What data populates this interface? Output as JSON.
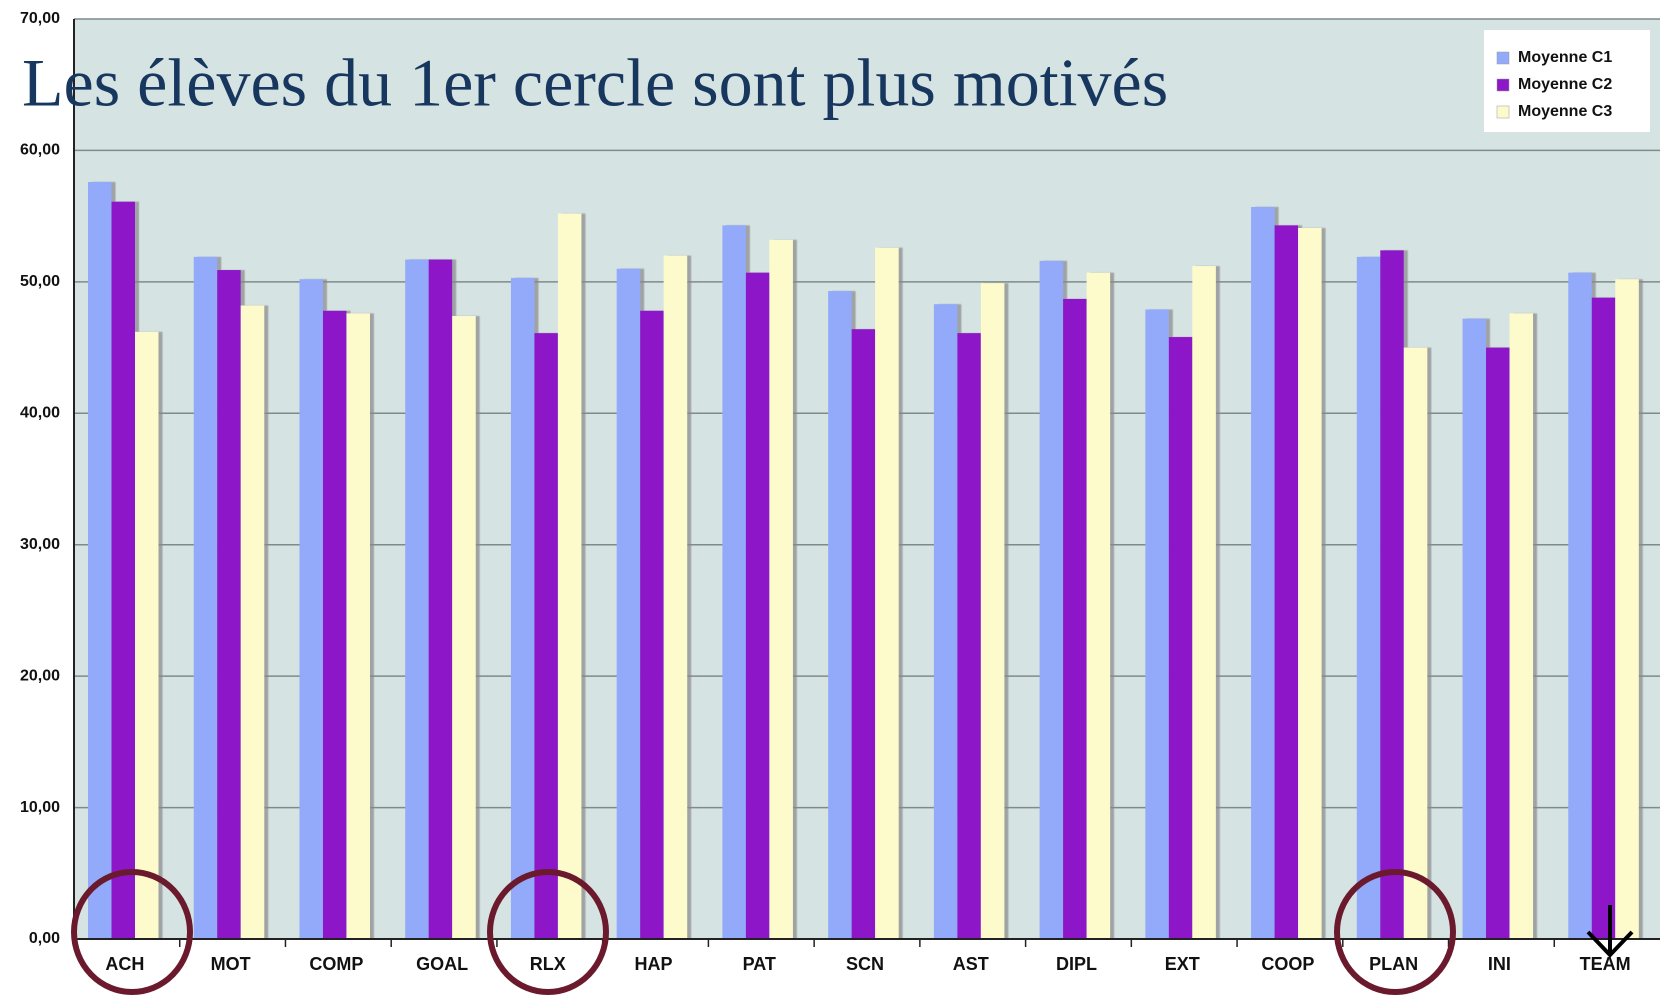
{
  "chart_data": {
    "type": "bar",
    "title": "Les élèves du 1er cercle sont plus motivés",
    "categories": [
      "ACH",
      "MOT",
      "COMP",
      "GOAL",
      "RLX",
      "HAP",
      "PAT",
      "SCN",
      "AST",
      "DIPL",
      "EXT",
      "COOP",
      "PLAN",
      "INI",
      "TEAM"
    ],
    "series": [
      {
        "name": "Moyenne C1",
        "color": "#92aaf9",
        "values": [
          57.6,
          51.9,
          50.2,
          51.7,
          50.3,
          51.0,
          54.3,
          49.3,
          48.3,
          51.6,
          47.9,
          55.7,
          51.9,
          47.2,
          50.7
        ]
      },
      {
        "name": "Moyenne C2",
        "color": "#8c18c8",
        "values": [
          56.1,
          50.9,
          47.8,
          51.7,
          46.1,
          47.8,
          50.7,
          46.4,
          46.1,
          48.7,
          45.8,
          54.3,
          52.4,
          45.0,
          48.8
        ]
      },
      {
        "name": "Moyenne C3",
        "color": "#fdfbcc",
        "values": [
          46.2,
          48.2,
          47.6,
          47.4,
          55.2,
          52.0,
          53.2,
          52.6,
          49.9,
          50.7,
          51.2,
          54.1,
          45.0,
          47.6,
          50.2
        ]
      }
    ],
    "ylim": [
      0,
      70
    ],
    "yticks": [
      {
        "value": 0,
        "label": "0,00"
      },
      {
        "value": 10,
        "label": "10,00"
      },
      {
        "value": 20,
        "label": "20,00"
      },
      {
        "value": 30,
        "label": "30,00"
      },
      {
        "value": 40,
        "label": "40,00"
      },
      {
        "value": 50,
        "label": "50,00"
      },
      {
        "value": 60,
        "label": "60,00"
      },
      {
        "value": 70,
        "label": "70,00"
      }
    ],
    "grid": true,
    "legend": "top-right"
  }
}
